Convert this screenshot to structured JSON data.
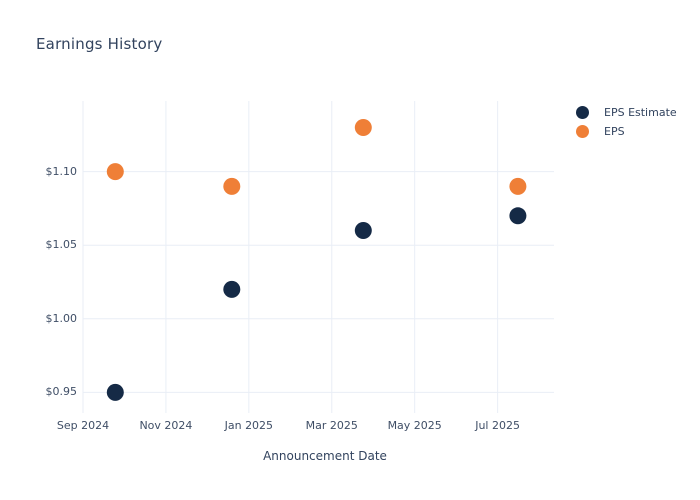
{
  "title": "Earnings History",
  "colors": {
    "background": "#ffffff",
    "grid": "#e9eef6",
    "title_text": "#32435e",
    "axis_tick_text": "#3f4e66",
    "eps_estimate": "#152a46",
    "eps": "#ef7f37"
  },
  "chart_data": {
    "type": "scatter",
    "title": "Earnings History",
    "xlabel": "Announcement Date",
    "ylabel": "",
    "grid": true,
    "legend_position": "outside-top-right",
    "x_tick_labels": [
      "Sep 2024",
      "Nov 2024",
      "Jan 2025",
      "Mar 2025",
      "May 2025",
      "Jul 2025"
    ],
    "x_tick_months": [
      0,
      2,
      4,
      6,
      8,
      10
    ],
    "xlim_months": [
      0,
      11.36
    ],
    "y_tick_labels": [
      "$0.95",
      "$1.00",
      "$1.05",
      "$1.10"
    ],
    "y_tick_values": [
      0.95,
      1.0,
      1.05,
      1.1
    ],
    "ylim": [
      0.936,
      1.148
    ],
    "marker_diameter_px": 17,
    "series": [
      {
        "name": "EPS Estimate",
        "color": "#152a46",
        "points": [
          {
            "x_months": 0.78,
            "date_approx": "late Sep 2024",
            "value": 0.95
          },
          {
            "x_months": 3.59,
            "date_approx": "mid Dec 2024",
            "value": 1.02
          },
          {
            "x_months": 6.76,
            "date_approx": "late Mar 2025",
            "value": 1.06
          },
          {
            "x_months": 10.49,
            "date_approx": "mid Jul 2025",
            "value": 1.07
          }
        ]
      },
      {
        "name": "EPS",
        "color": "#ef7f37",
        "points": [
          {
            "x_months": 0.78,
            "date_approx": "late Sep 2024",
            "value": 1.1
          },
          {
            "x_months": 3.59,
            "date_approx": "mid Dec 2024",
            "value": 1.09
          },
          {
            "x_months": 6.76,
            "date_approx": "late Mar 2025",
            "value": 1.13
          },
          {
            "x_months": 10.49,
            "date_approx": "mid Jul 2025",
            "value": 1.09
          }
        ]
      }
    ]
  }
}
